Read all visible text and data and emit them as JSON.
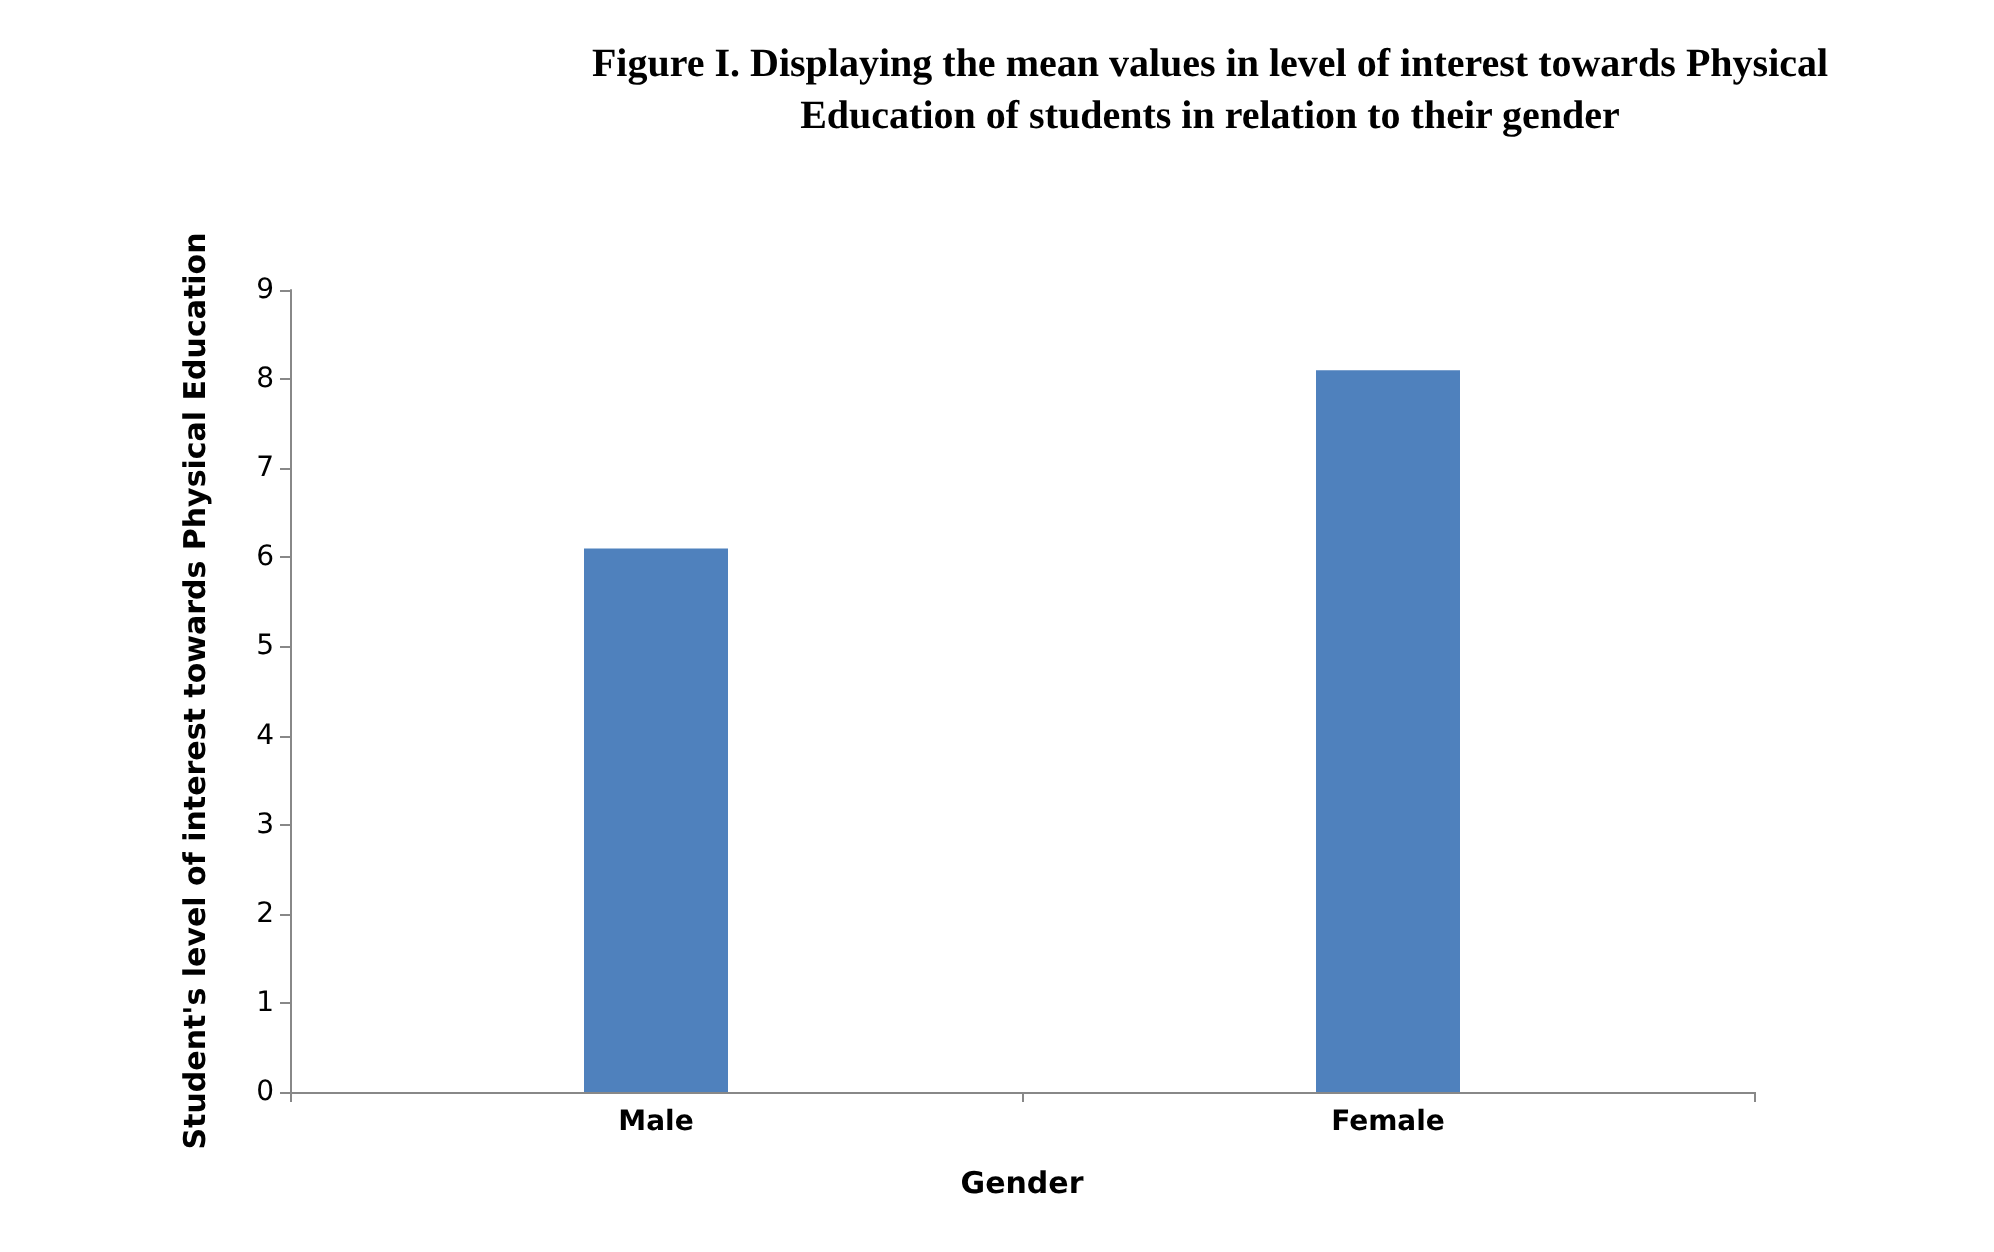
{
  "chart_data": {
    "type": "bar",
    "title": "Figure I. Displaying the mean values in level of interest towards Physical\nEducation of students in relation to their gender",
    "xlabel": "Gender",
    "ylabel": "Student's level of interest towards Physical Education",
    "categories": [
      "Male",
      "Female"
    ],
    "values": [
      6.1,
      8.1
    ],
    "color": "#4f81bd",
    "ylim": [
      0,
      9
    ],
    "yticks": [
      0,
      1,
      2,
      3,
      4,
      5,
      6,
      7,
      8,
      9
    ],
    "grid": false
  }
}
